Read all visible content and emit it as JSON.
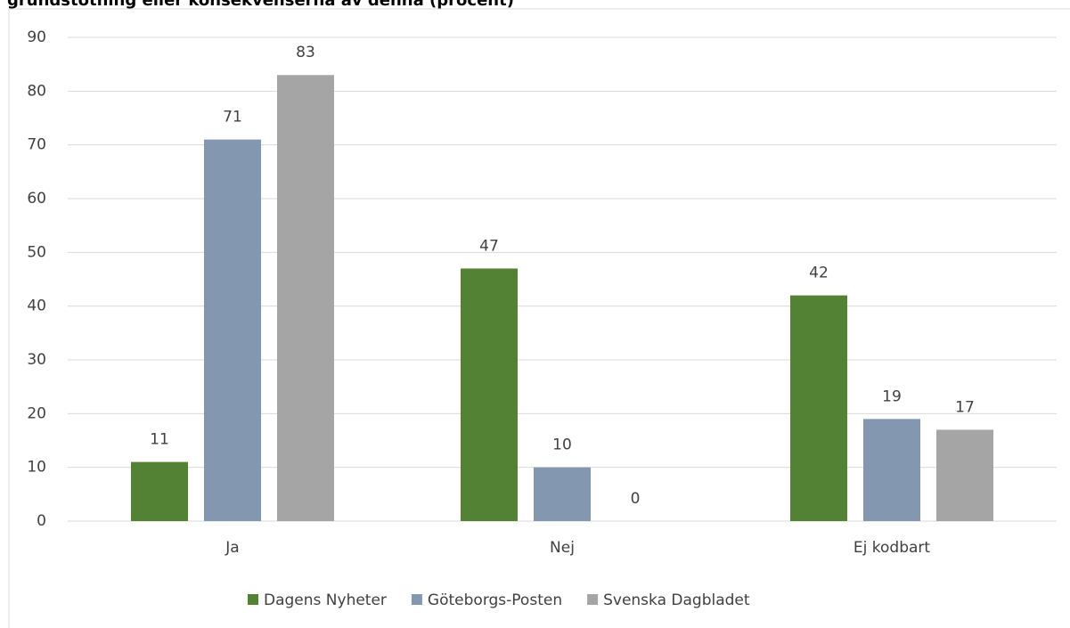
{
  "chart_data": {
    "type": "bar",
    "title": "grundstötning eller konsekvenserna av denna (procent)",
    "categories": [
      "Ja",
      "Nej",
      "Ej kodbart"
    ],
    "series": [
      {
        "name": "Dagens Nyheter",
        "color": "#548235",
        "values": [
          11,
          47,
          42
        ]
      },
      {
        "name": "Göteborgs-Posten",
        "color": "#8497b0",
        "values": [
          71,
          10,
          19
        ]
      },
      {
        "name": "Svenska Dagbladet",
        "color": "#a5a5a5",
        "values": [
          83,
          0,
          17
        ]
      }
    ],
    "ylim": [
      0,
      90
    ],
    "yticks": [
      0,
      10,
      20,
      30,
      40,
      50,
      60,
      70,
      80,
      90
    ],
    "grid": true,
    "legend": "bottom"
  }
}
